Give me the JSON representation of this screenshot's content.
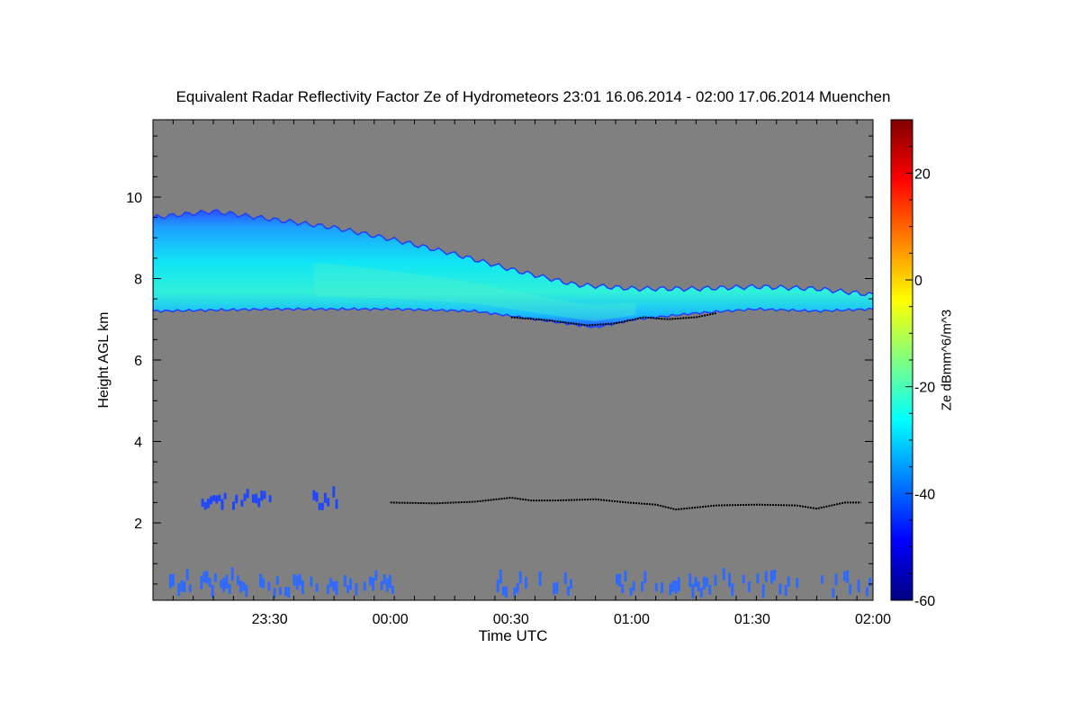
{
  "chart_data": {
    "type": "heatmap",
    "title": "Equivalent Radar Reflectivity Factor Ze of Hydrometeors   23:01 16.06.2014 - 02:00 17.06.2014 Muenchen",
    "xlabel": "Time UTC",
    "ylabel": "Height AGL km",
    "x_ticks": [
      "23:30",
      "00:00",
      "00:30",
      "01:00",
      "01:30",
      "02:00"
    ],
    "x_tick_minutes": [
      29,
      59,
      89,
      119,
      149,
      179
    ],
    "xlim_minutes": [
      0,
      179
    ],
    "y_ticks": [
      2,
      4,
      6,
      8,
      10
    ],
    "ylim": [
      0.1,
      11.9
    ],
    "background_color": "#808080",
    "colorbar": {
      "label": "Ze dBmm^6/m^3",
      "ticks": [
        20,
        0,
        -20,
        -40,
        -60
      ],
      "range": [
        -60,
        30
      ],
      "colors": [
        "#000080",
        "#0000ff",
        "#0080ff",
        "#00ffff",
        "#80ff80",
        "#ffff00",
        "#ff8000",
        "#ff0000",
        "#800000"
      ]
    },
    "layers": [
      {
        "name": "upper ice cloud",
        "top_km": [
          [
            0,
            9.5
          ],
          [
            15,
            9.65
          ],
          [
            30,
            9.45
          ],
          [
            45,
            9.25
          ],
          [
            60,
            8.95
          ],
          [
            75,
            8.6
          ],
          [
            90,
            8.2
          ],
          [
            105,
            7.85
          ],
          [
            120,
            7.75
          ],
          [
            135,
            7.75
          ],
          [
            150,
            7.8
          ],
          [
            165,
            7.75
          ],
          [
            179,
            7.6
          ]
        ],
        "base_km": [
          [
            0,
            7.2
          ],
          [
            30,
            7.25
          ],
          [
            60,
            7.25
          ],
          [
            80,
            7.2
          ],
          [
            95,
            7.0
          ],
          [
            110,
            6.8
          ],
          [
            120,
            7.0
          ],
          [
            135,
            7.15
          ],
          [
            150,
            7.25
          ],
          [
            165,
            7.2
          ],
          [
            179,
            7.25
          ]
        ],
        "ze_max_dbz": -25,
        "ze_edge_dbz": -45
      },
      {
        "name": "mid-level echoes",
        "segments_minutes": [
          [
            12,
            29
          ],
          [
            39,
            46
          ]
        ],
        "height_km": [
          2.3,
          2.8
        ],
        "ze_dbz": -45
      },
      {
        "name": "near-surface echoes",
        "segments_minutes": [
          [
            4,
            62
          ],
          [
            84,
            105
          ],
          [
            115,
            160
          ],
          [
            166,
            179
          ]
        ],
        "height_km": [
          0.15,
          0.8
        ],
        "ze_dbz": -42
      }
    ],
    "black_markers": {
      "name": "cloud base detections",
      "points": [
        [
          59,
          2.5
        ],
        [
          70,
          2.48
        ],
        [
          80,
          2.52
        ],
        [
          89,
          2.62
        ],
        [
          94,
          2.55
        ],
        [
          100,
          2.55
        ],
        [
          110,
          2.58
        ],
        [
          118,
          2.5
        ],
        [
          125,
          2.45
        ],
        [
          130,
          2.33
        ],
        [
          140,
          2.43
        ],
        [
          150,
          2.45
        ],
        [
          160,
          2.43
        ],
        [
          165,
          2.35
        ],
        [
          172,
          2.5
        ],
        [
          176,
          2.5
        ]
      ],
      "upper_points": [
        [
          89,
          7.05
        ],
        [
          98,
          6.98
        ],
        [
          108,
          6.85
        ],
        [
          115,
          6.9
        ],
        [
          122,
          7.05
        ],
        [
          128,
          7.0
        ],
        [
          135,
          7.05
        ],
        [
          140,
          7.15
        ]
      ]
    }
  }
}
